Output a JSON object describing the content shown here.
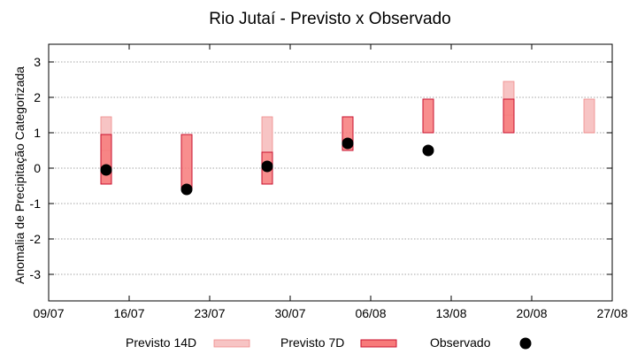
{
  "chart_data": {
    "type": "range-bar",
    "title": "Rio Jutaí - Previsto x Observado",
    "ylabel": "Anomalia de Precipitação Categorizada",
    "xlabel": "",
    "ylim": [
      -3.75,
      3.5
    ],
    "yticks": [
      3,
      2,
      1,
      0,
      -1,
      -2,
      -3
    ],
    "x_ticks": [
      "09/07",
      "16/07",
      "23/07",
      "30/07",
      "06/08",
      "13/08",
      "20/08",
      "27/08"
    ],
    "grid": true,
    "legend_position": "bottom",
    "series": [
      {
        "name": "Previsto 14D",
        "color": "#f7c4c4",
        "edge": "#ee8a8a",
        "points": [
          {
            "x": "14/07",
            "low": -0.45,
            "high": 1.45,
            "mid": 0.5
          },
          {
            "x": "28/07",
            "low": 0.45,
            "high": 1.45,
            "mid": 0.45
          },
          {
            "x": "18/08",
            "low": 1.0,
            "high": 2.45,
            "mid": 1.5
          },
          {
            "x": "25/08",
            "low": 1.0,
            "high": 1.95,
            "mid": 1.0
          }
        ]
      },
      {
        "name": "Previsto 7D",
        "color": "#f77a7a",
        "edge": "#c8102e",
        "points": [
          {
            "x": "14/07",
            "low": -0.45,
            "high": 0.95
          },
          {
            "x": "21/07",
            "low": -0.6,
            "high": 0.95
          },
          {
            "x": "28/07",
            "low": -0.45,
            "high": 0.45
          },
          {
            "x": "04/08",
            "low": 0.5,
            "high": 1.45
          },
          {
            "x": "11/08",
            "low": 1.0,
            "high": 1.95
          },
          {
            "x": "18/08",
            "low": 1.0,
            "high": 1.95
          }
        ]
      },
      {
        "name": "Observado",
        "color": "#000000",
        "points": [
          {
            "x": "14/07",
            "y": -0.05
          },
          {
            "x": "21/07",
            "y": -0.6
          },
          {
            "x": "28/07",
            "y": 0.05
          },
          {
            "x": "04/08",
            "y": 0.7
          },
          {
            "x": "11/08",
            "y": 0.5
          }
        ]
      }
    ]
  }
}
